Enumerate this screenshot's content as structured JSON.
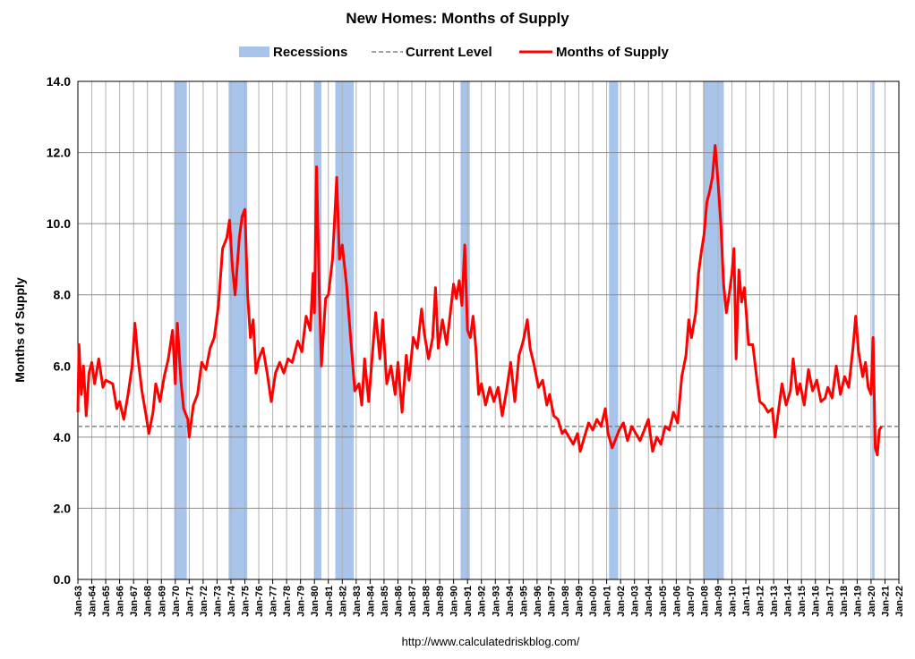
{
  "chart_data": {
    "type": "line",
    "title": "New Homes: Months of Supply",
    "ylabel": "Months of Supply",
    "source": "http://www.calculatedriskblog.com/",
    "xlim": [
      1963,
      2022
    ],
    "ylim": [
      0,
      14
    ],
    "yticks": [
      {
        "value": 0,
        "label": "0.0"
      },
      {
        "value": 2,
        "label": "2.0"
      },
      {
        "value": 4,
        "label": "4.0"
      },
      {
        "value": 6,
        "label": "6.0"
      },
      {
        "value": 8,
        "label": "8.0"
      },
      {
        "value": 10,
        "label": "10.0"
      },
      {
        "value": 12,
        "label": "12.0"
      },
      {
        "value": 14,
        "label": "14.0"
      }
    ],
    "xticks": [
      {
        "value": 1963,
        "label": "Jan-63"
      },
      {
        "value": 1964,
        "label": "Jan-64"
      },
      {
        "value": 1965,
        "label": "Jan-65"
      },
      {
        "value": 1966,
        "label": "Jan-66"
      },
      {
        "value": 1967,
        "label": "Jan-67"
      },
      {
        "value": 1968,
        "label": "Jan-68"
      },
      {
        "value": 1969,
        "label": "Jan-69"
      },
      {
        "value": 1970,
        "label": "Jan-70"
      },
      {
        "value": 1971,
        "label": "Jan-71"
      },
      {
        "value": 1972,
        "label": "Jan-72"
      },
      {
        "value": 1973,
        "label": "Jan-73"
      },
      {
        "value": 1974,
        "label": "Jan-74"
      },
      {
        "value": 1975,
        "label": "Jan-75"
      },
      {
        "value": 1976,
        "label": "Jan-76"
      },
      {
        "value": 1977,
        "label": "Jan-77"
      },
      {
        "value": 1978,
        "label": "Jan-78"
      },
      {
        "value": 1979,
        "label": "Jan-79"
      },
      {
        "value": 1980,
        "label": "Jan-80"
      },
      {
        "value": 1981,
        "label": "Jan-81"
      },
      {
        "value": 1982,
        "label": "Jan-82"
      },
      {
        "value": 1983,
        "label": "Jan-83"
      },
      {
        "value": 1984,
        "label": "Jan-84"
      },
      {
        "value": 1985,
        "label": "Jan-85"
      },
      {
        "value": 1986,
        "label": "Jan-86"
      },
      {
        "value": 1987,
        "label": "Jan-87"
      },
      {
        "value": 1988,
        "label": "Jan-88"
      },
      {
        "value": 1989,
        "label": "Jan-89"
      },
      {
        "value": 1990,
        "label": "Jan-90"
      },
      {
        "value": 1991,
        "label": "Jan-91"
      },
      {
        "value": 1992,
        "label": "Jan-92"
      },
      {
        "value": 1993,
        "label": "Jan-93"
      },
      {
        "value": 1994,
        "label": "Jan-94"
      },
      {
        "value": 1995,
        "label": "Jan-95"
      },
      {
        "value": 1996,
        "label": "Jan-96"
      },
      {
        "value": 1997,
        "label": "Jan-97"
      },
      {
        "value": 1998,
        "label": "Jan-98"
      },
      {
        "value": 1999,
        "label": "Jan-99"
      },
      {
        "value": 2000,
        "label": "Jan-00"
      },
      {
        "value": 2001,
        "label": "Jan-01"
      },
      {
        "value": 2002,
        "label": "Jan-02"
      },
      {
        "value": 2003,
        "label": "Jan-03"
      },
      {
        "value": 2004,
        "label": "Jan-04"
      },
      {
        "value": 2005,
        "label": "Jan-05"
      },
      {
        "value": 2006,
        "label": "Jan-06"
      },
      {
        "value": 2007,
        "label": "Jan-07"
      },
      {
        "value": 2008,
        "label": "Jan-08"
      },
      {
        "value": 2009,
        "label": "Jan-09"
      },
      {
        "value": 2010,
        "label": "Jan-10"
      },
      {
        "value": 2011,
        "label": "Jan-11"
      },
      {
        "value": 2012,
        "label": "Jan-12"
      },
      {
        "value": 2013,
        "label": "Jan-13"
      },
      {
        "value": 2014,
        "label": "Jan-14"
      },
      {
        "value": 2015,
        "label": "Jan-15"
      },
      {
        "value": 2016,
        "label": "Jan-16"
      },
      {
        "value": 2017,
        "label": "Jan-17"
      },
      {
        "value": 2018,
        "label": "Jan-18"
      },
      {
        "value": 2019,
        "label": "Jan-19"
      },
      {
        "value": 2020,
        "label": "Jan-20"
      },
      {
        "value": 2021,
        "label": "Jan-21"
      },
      {
        "value": 2022,
        "label": "Jan-22"
      }
    ],
    "grid": true,
    "recessions": {
      "name": "Recessions",
      "color": "#a9c4eb",
      "spans": [
        [
          1969.92,
          1970.83
        ],
        [
          1973.83,
          1975.17
        ],
        [
          1980.0,
          1980.5
        ],
        [
          1981.5,
          1982.83
        ],
        [
          1990.5,
          1991.17
        ],
        [
          2001.17,
          2001.83
        ],
        [
          2007.92,
          2009.42
        ],
        [
          2020.08,
          2020.25
        ]
      ]
    },
    "current_level": {
      "name": "Current Level",
      "value": 4.3,
      "color": "#808080"
    },
    "x": [
      1963.0,
      1963.08,
      1963.25,
      1963.4,
      1963.6,
      1963.8,
      1964.0,
      1964.2,
      1964.5,
      1964.8,
      1965.0,
      1965.5,
      1965.8,
      1966.0,
      1966.3,
      1966.6,
      1966.9,
      1967.1,
      1967.3,
      1967.6,
      1967.9,
      1968.1,
      1968.4,
      1968.6,
      1968.9,
      1969.2,
      1969.5,
      1969.8,
      1970.0,
      1970.15,
      1970.4,
      1970.6,
      1970.9,
      1971.0,
      1971.3,
      1971.6,
      1971.9,
      1972.2,
      1972.5,
      1972.8,
      1973.1,
      1973.4,
      1973.7,
      1973.9,
      1974.1,
      1974.3,
      1974.6,
      1974.8,
      1975.0,
      1975.2,
      1975.4,
      1975.6,
      1975.8,
      1976.0,
      1976.3,
      1976.6,
      1976.9,
      1977.2,
      1977.5,
      1977.8,
      1978.1,
      1978.4,
      1978.8,
      1979.1,
      1979.4,
      1979.7,
      1979.9,
      1980.0,
      1980.15,
      1980.35,
      1980.5,
      1980.8,
      1981.0,
      1981.3,
      1981.5,
      1981.6,
      1981.8,
      1982.0,
      1982.3,
      1982.6,
      1982.9,
      1983.2,
      1983.4,
      1983.6,
      1983.9,
      1984.1,
      1984.4,
      1984.7,
      1984.9,
      1985.2,
      1985.5,
      1985.8,
      1986.0,
      1986.3,
      1986.6,
      1986.8,
      1987.1,
      1987.4,
      1987.7,
      1987.9,
      1988.2,
      1988.5,
      1988.7,
      1988.9,
      1989.2,
      1989.5,
      1989.8,
      1990.0,
      1990.2,
      1990.4,
      1990.6,
      1990.8,
      1991.0,
      1991.2,
      1991.4,
      1991.6,
      1991.8,
      1992.0,
      1992.3,
      1992.6,
      1992.9,
      1993.2,
      1993.5,
      1993.8,
      1994.1,
      1994.4,
      1994.7,
      1995.0,
      1995.3,
      1995.5,
      1995.8,
      1996.1,
      1996.4,
      1996.7,
      1996.9,
      1997.2,
      1997.5,
      1997.8,
      1998.0,
      1998.3,
      1998.6,
      1998.9,
      1999.1,
      1999.4,
      1999.7,
      2000.0,
      2000.3,
      2000.6,
      2000.9,
      2001.1,
      2001.4,
      2001.7,
      2001.9,
      2002.2,
      2002.5,
      2002.8,
      2003.1,
      2003.4,
      2003.7,
      2004.0,
      2004.3,
      2004.6,
      2004.9,
      2005.2,
      2005.5,
      2005.8,
      2006.1,
      2006.4,
      2006.7,
      2006.9,
      2007.1,
      2007.4,
      2007.6,
      2007.8,
      2008.0,
      2008.2,
      2008.4,
      2008.6,
      2008.8,
      2009.0,
      2009.2,
      2009.4,
      2009.6,
      2009.8,
      2010.0,
      2010.15,
      2010.3,
      2010.5,
      2010.7,
      2010.9,
      2011.2,
      2011.5,
      2011.8,
      2012.0,
      2012.3,
      2012.6,
      2012.9,
      2013.1,
      2013.3,
      2013.6,
      2013.9,
      2014.2,
      2014.4,
      2014.7,
      2014.9,
      2015.2,
      2015.5,
      2015.8,
      2016.1,
      2016.4,
      2016.7,
      2016.9,
      2017.2,
      2017.5,
      2017.8,
      2018.1,
      2018.4,
      2018.7,
      2018.9,
      2019.1,
      2019.4,
      2019.6,
      2019.8,
      2020.0,
      2020.15,
      2020.3,
      2020.45,
      2020.6,
      2020.75
    ],
    "series": [
      {
        "name": "Months of Supply",
        "color": "#ff0000",
        "values": [
          4.7,
          6.6,
          5.2,
          6.0,
          4.6,
          5.8,
          6.1,
          5.5,
          6.2,
          5.4,
          5.6,
          5.5,
          4.8,
          5.0,
          4.5,
          5.2,
          6.0,
          7.2,
          6.3,
          5.3,
          4.6,
          4.1,
          4.7,
          5.5,
          5.0,
          5.7,
          6.2,
          7.0,
          5.5,
          7.2,
          5.6,
          4.8,
          4.5,
          4.0,
          4.9,
          5.2,
          6.1,
          5.9,
          6.5,
          6.8,
          7.7,
          9.3,
          9.6,
          10.1,
          8.8,
          8.0,
          9.6,
          10.2,
          10.4,
          8.0,
          6.8,
          7.3,
          5.8,
          6.2,
          6.5,
          5.8,
          5.0,
          5.8,
          6.1,
          5.8,
          6.2,
          6.1,
          6.7,
          6.4,
          7.4,
          7.0,
          8.6,
          7.5,
          11.6,
          8.0,
          6.0,
          7.9,
          8.0,
          9.0,
          10.5,
          11.3,
          9.0,
          9.4,
          8.3,
          6.8,
          5.3,
          5.5,
          4.9,
          6.2,
          5.0,
          6.0,
          7.5,
          6.2,
          7.3,
          5.5,
          6.0,
          5.2,
          6.1,
          4.7,
          6.3,
          5.6,
          6.8,
          6.5,
          7.6,
          6.9,
          6.2,
          6.8,
          8.2,
          6.5,
          7.3,
          6.6,
          7.6,
          8.3,
          7.9,
          8.4,
          7.7,
          9.4,
          7.0,
          6.8,
          7.4,
          6.5,
          5.2,
          5.5,
          4.9,
          5.4,
          5.0,
          5.4,
          4.6,
          5.3,
          6.1,
          5.0,
          6.3,
          6.7,
          7.3,
          6.5,
          6.0,
          5.4,
          5.6,
          4.9,
          5.2,
          4.6,
          4.5,
          4.1,
          4.2,
          4.0,
          3.8,
          4.1,
          3.6,
          4.0,
          4.4,
          4.2,
          4.5,
          4.3,
          4.8,
          4.1,
          3.7,
          4.0,
          4.2,
          4.4,
          3.9,
          4.3,
          4.1,
          3.9,
          4.2,
          4.5,
          3.6,
          4.0,
          3.8,
          4.3,
          4.2,
          4.7,
          4.4,
          5.7,
          6.3,
          7.3,
          6.8,
          7.5,
          8.6,
          9.2,
          9.7,
          10.6,
          10.9,
          11.3,
          12.2,
          11.2,
          10.0,
          8.3,
          7.5,
          8.0,
          8.6,
          9.3,
          6.2,
          8.7,
          7.8,
          8.2,
          6.6,
          6.6,
          5.6,
          5.0,
          4.9,
          4.7,
          4.8,
          4.0,
          4.6,
          5.5,
          4.9,
          5.3,
          6.2,
          5.2,
          5.5,
          4.9,
          5.9,
          5.3,
          5.6,
          5.0,
          5.1,
          5.4,
          5.1,
          6.0,
          5.2,
          5.7,
          5.4,
          6.5,
          7.4,
          6.4,
          5.7,
          6.1,
          5.4,
          5.2,
          6.8,
          3.7,
          3.5,
          4.2,
          4.3
        ]
      }
    ]
  }
}
